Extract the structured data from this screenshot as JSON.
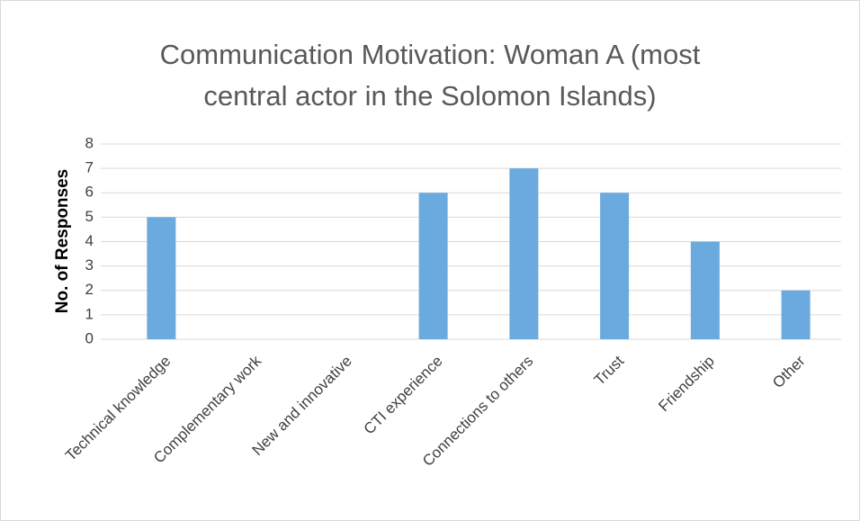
{
  "chart_data": {
    "type": "bar",
    "title": "Communication Motivation: Woman A (most central actor in the Solomon Islands)",
    "y_label": "No. of Responses",
    "categories": [
      "Technical knowledge",
      "Complementary work",
      "New and innovative",
      "CTI experience",
      "Connections to others",
      "Trust",
      "Friendship",
      "Other"
    ],
    "values": [
      5,
      0,
      0,
      6,
      7,
      6,
      4,
      2
    ],
    "color": "#6aaade",
    "ylim": [
      0,
      8
    ],
    "yticks": [
      0,
      1,
      2,
      3,
      4,
      5,
      6,
      7,
      8
    ],
    "grid": true
  }
}
